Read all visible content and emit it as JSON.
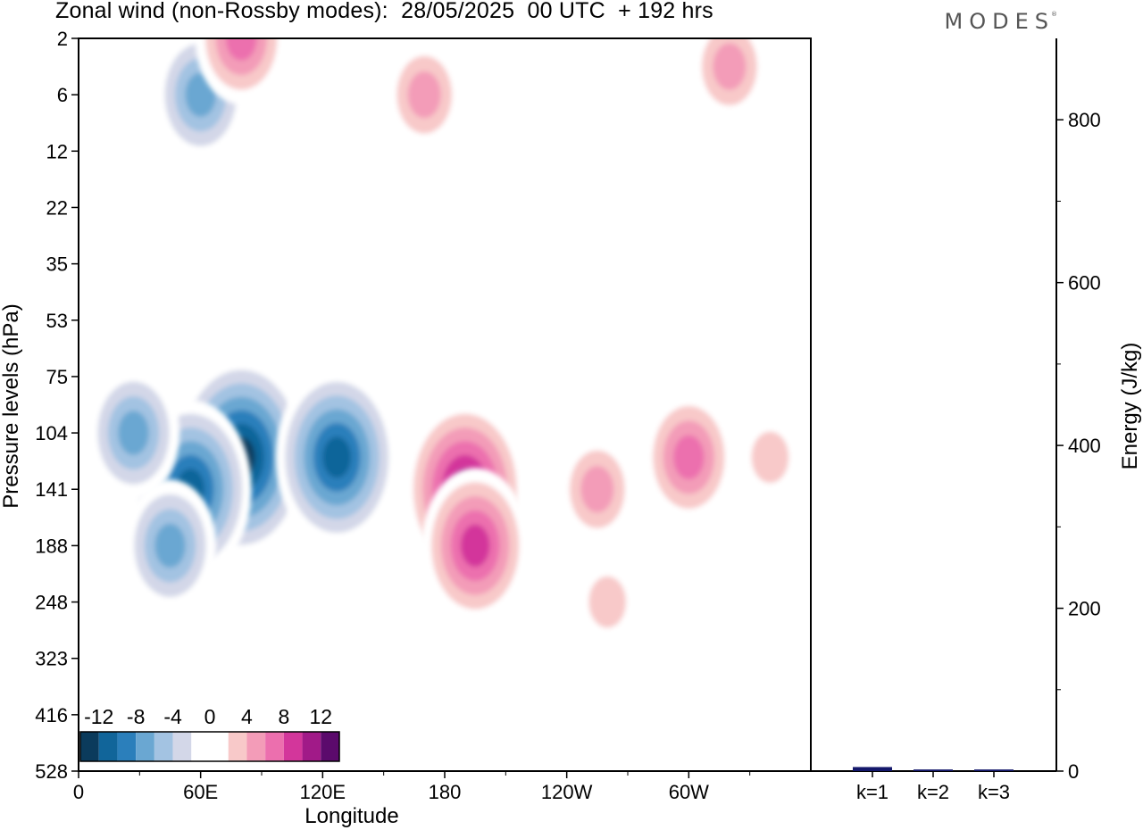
{
  "header": {
    "title": "Zonal wind (non-Rossby modes):  28/05/2025  00 UTC  + 192 hrs",
    "logo": "MODES"
  },
  "colors": {
    "levels": [
      "#0b3b5c",
      "#11659a",
      "#2b7fbb",
      "#6aa7d2",
      "#a3c3e2",
      "#d3d7e8",
      "#ffffff",
      "#ffffff",
      "#f8c9c9",
      "#f39cb8",
      "#ec6fae",
      "#d3369b",
      "#a11a88",
      "#5b0a6c"
    ],
    "background": "#ffffff",
    "axis": "#000000",
    "bar": "#14186b"
  },
  "chart_data": [
    {
      "type": "heatmap",
      "title": "Zonal wind (non-Rossby modes):  28/05/2025  00 UTC  + 192 hrs",
      "xlabel": "Longitude",
      "ylabel": "Pressure levels (hPa)",
      "x_ticks": [
        "0",
        "60E",
        "120E",
        "180",
        "120W",
        "60W"
      ],
      "x_tick_values": [
        0,
        60,
        120,
        180,
        240,
        300
      ],
      "xlim": [
        0,
        360
      ],
      "y_ticks": [
        "2",
        "6",
        "12",
        "22",
        "35",
        "53",
        "75",
        "104",
        "141",
        "188",
        "248",
        "323",
        "416",
        "528"
      ],
      "y_scale": "model levels (top to bottom)",
      "colorbar": {
        "tick_labels": [
          "-12",
          "-8",
          "-4",
          "0",
          "4",
          "8",
          "12"
        ],
        "levels": [
          -14,
          -12,
          -10,
          -8,
          -6,
          -4,
          -2,
          0,
          2,
          4,
          6,
          8,
          10,
          12,
          14
        ]
      },
      "features": [
        {
          "lon": 80,
          "level": "120",
          "value": -14
        },
        {
          "lon": 55,
          "level": "141",
          "value": -12
        },
        {
          "lon": 127,
          "level": "120",
          "value": -12
        },
        {
          "lon": 27,
          "level": "104",
          "value": -8
        },
        {
          "lon": 60,
          "level": "6",
          "value": -8
        },
        {
          "lon": 45,
          "level": "188",
          "value": -8
        },
        {
          "lon": 190,
          "level": "141",
          "value": 12
        },
        {
          "lon": 195,
          "level": "188",
          "value": 10
        },
        {
          "lon": 255,
          "level": "141",
          "value": 6
        },
        {
          "lon": 300,
          "level": "120",
          "value": 8
        },
        {
          "lon": 340,
          "level": "120",
          "value": 4
        },
        {
          "lon": 260,
          "level": "248",
          "value": 4
        },
        {
          "lon": 80,
          "level": "2",
          "value": 8
        },
        {
          "lon": 170,
          "level": "6",
          "value": 6
        },
        {
          "lon": 320,
          "level": "4",
          "value": 6
        }
      ]
    },
    {
      "type": "bar",
      "categories": [
        "k=1",
        "k=2",
        "k=3"
      ],
      "values": [
        5,
        2,
        2
      ],
      "ylabel": "Energy (J/kg)",
      "ylim": [
        0,
        900
      ],
      "y_ticks": [
        "0",
        "200",
        "400",
        "600",
        "800"
      ]
    }
  ]
}
